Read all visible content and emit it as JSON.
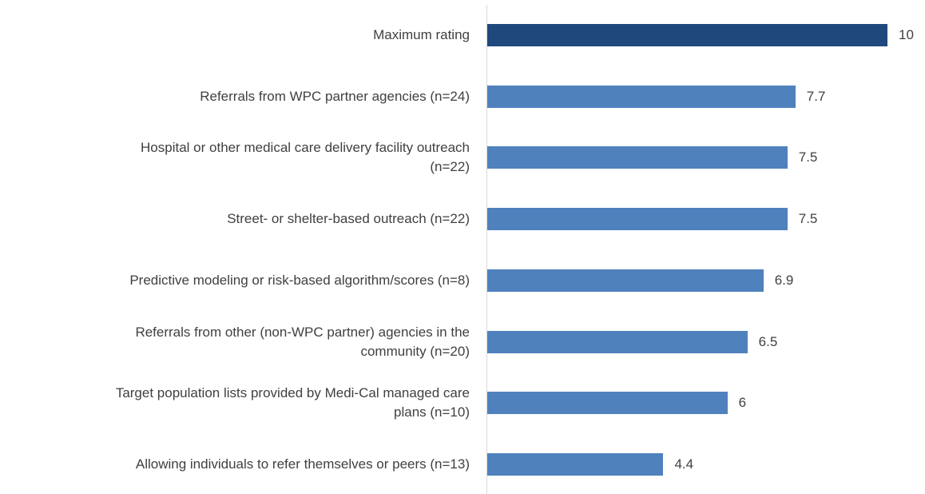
{
  "chart_data": {
    "type": "barh",
    "categories": [
      "Maximum rating",
      "Referrals from WPC partner agencies (n=24)",
      "Hospital or other medical care delivery facility outreach\n(n=22)",
      "Street- or shelter-based outreach (n=22)",
      "Predictive modeling or risk-based algorithm/scores (n=8)",
      "Referrals from other (non-WPC partner) agencies in the\ncommunity (n=20)",
      "Target population lists provided by Medi-Cal managed care\nplans (n=10)",
      "Allowing individuals to refer themselves or peers (n=13)"
    ],
    "values": [
      10,
      7.7,
      7.5,
      7.5,
      6.9,
      6.5,
      6,
      4.4
    ],
    "colors": [
      "#1f497d",
      "#4f81bd",
      "#4f81bd",
      "#4f81bd",
      "#4f81bd",
      "#4f81bd",
      "#4f81bd",
      "#4f81bd"
    ]
  }
}
